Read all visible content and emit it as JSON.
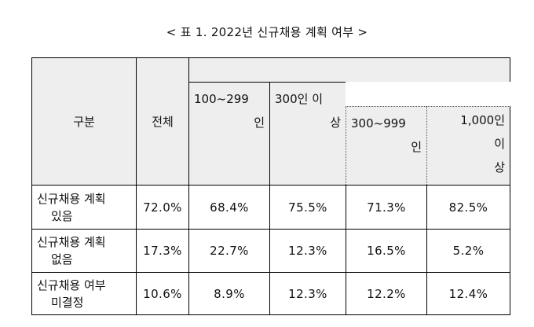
{
  "title": "< 표 1. 2022년 신규채용 계획 여부 >",
  "table": {
    "headers": {
      "category": "구분",
      "total": "전체",
      "size_100_299_line1": "100~299",
      "size_100_299_line2": "인",
      "size_300_plus_line1": "300인 이",
      "size_300_plus_line2": "상",
      "size_300_999_line1": "300~999",
      "size_300_999_line2": "인",
      "size_1000_line1": "1,000인",
      "size_1000_line2": "이",
      "size_1000_line3": "상"
    },
    "rows": [
      {
        "label_line1": "신규채용 계획",
        "label_line2": "있음",
        "values": [
          "72.0%",
          "68.4%",
          "75.5%",
          "71.3%",
          "82.5%"
        ]
      },
      {
        "label_line1": "신규채용 계획",
        "label_line2": "없음",
        "values": [
          "17.3%",
          "22.7%",
          "12.3%",
          "16.5%",
          "5.2%"
        ]
      },
      {
        "label_line1": "신규채용 여부",
        "label_line2": "미결정",
        "values": [
          "10.6%",
          "8.9%",
          "12.3%",
          "12.2%",
          "12.4%"
        ]
      }
    ]
  }
}
